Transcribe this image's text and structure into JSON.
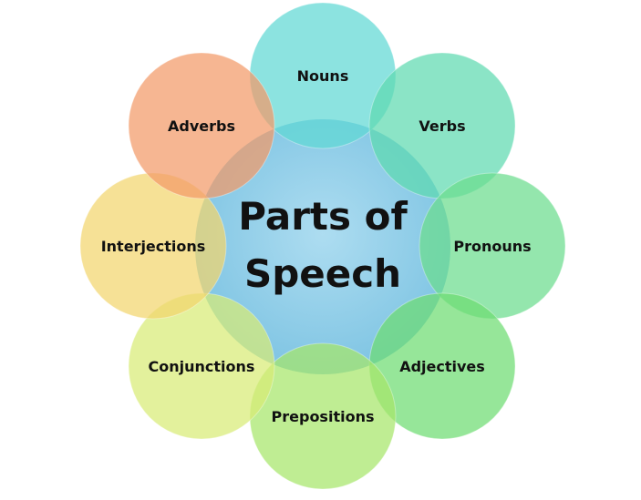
{
  "center": {
    "title_line1": "Parts of",
    "title_line2": "Speech",
    "color": "#74bfe0"
  },
  "items": [
    {
      "label": "Nouns",
      "color": "#5fd8d4"
    },
    {
      "label": "Verbs",
      "color": "#5ed9b0"
    },
    {
      "label": "Pronouns",
      "color": "#6bdc8e"
    },
    {
      "label": "Adjectives",
      "color": "#6edc72"
    },
    {
      "label": "Prepositions",
      "color": "#a6e66a"
    },
    {
      "label": "Conjunctions",
      "color": "#d8ec76"
    },
    {
      "label": "Interjections",
      "color": "#f2d66e"
    },
    {
      "label": "Adverbs",
      "color": "#f29a68"
    }
  ]
}
